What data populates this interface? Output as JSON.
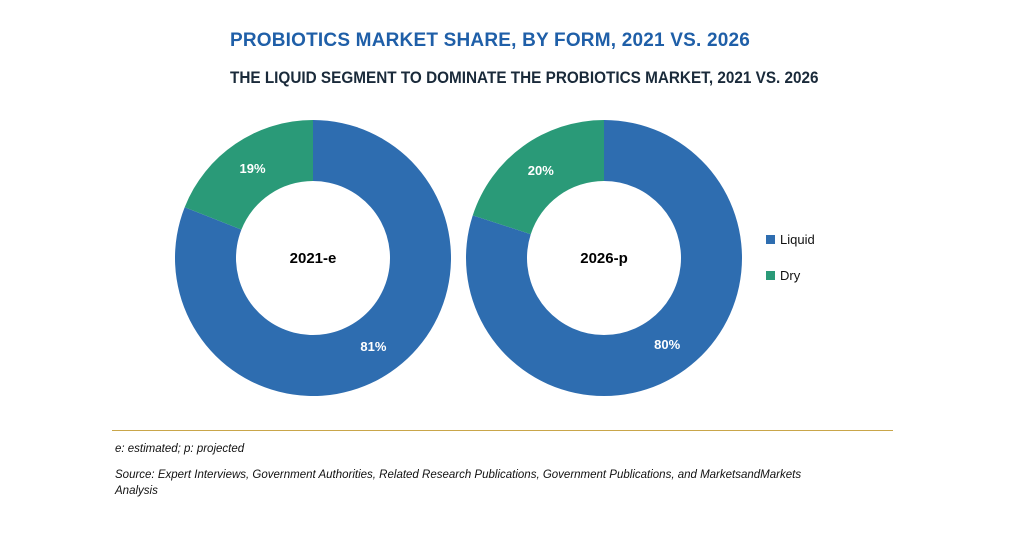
{
  "title": "PROBIOTICS MARKET SHARE, BY FORM, 2021 VS. 2026",
  "subtitle": "THE LIQUID SEGMENT TO DOMINATE THE PROBIOTICS MARKET, 2021 VS. 2026",
  "footnote": "e: estimated; p: projected",
  "source": "Source: Expert Interviews, Government Authorities, Related Research Publications, Government Publications, and MarketsandMarkets Analysis",
  "colors": {
    "liquid": "#2e6db0",
    "dry": "#2a9a78"
  },
  "chart_data": {
    "type": "pie",
    "variant": "donut",
    "legend": {
      "position": "right",
      "entries": [
        "Liquid",
        "Dry"
      ]
    },
    "charts": [
      {
        "center_label": "2021-e",
        "slices": [
          {
            "name": "Liquid",
            "value": 81,
            "label": "81%"
          },
          {
            "name": "Dry",
            "value": 19,
            "label": "19%"
          }
        ]
      },
      {
        "center_label": "2026-p",
        "slices": [
          {
            "name": "Liquid",
            "value": 80,
            "label": "80%"
          },
          {
            "name": "Dry",
            "value": 20,
            "label": "20%"
          }
        ]
      }
    ]
  }
}
